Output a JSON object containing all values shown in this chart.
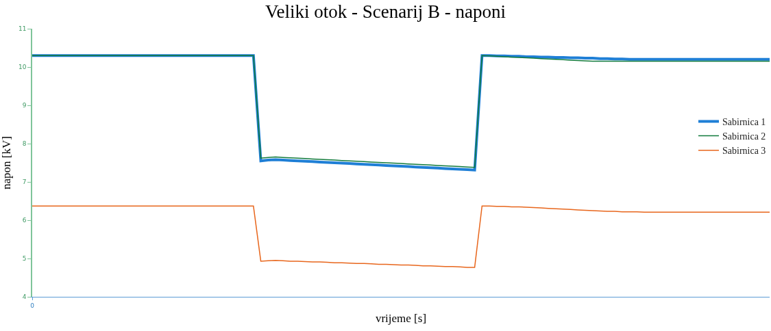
{
  "chart_data": {
    "type": "line",
    "title": "Veliki otok - Scenarij B - naponi",
    "xlabel": "vrijeme [s]",
    "ylabel": "napon [kV]",
    "categories": [
      "0",
      null,
      null,
      null,
      null,
      null,
      null,
      null,
      null,
      null,
      null,
      null,
      null,
      null,
      null,
      null,
      null,
      null,
      null,
      null,
      null,
      null,
      null,
      null,
      null,
      null,
      null,
      null,
      null,
      null,
      null,
      null,
      null,
      null,
      null,
      null,
      null,
      null,
      null,
      null,
      null,
      null,
      null,
      null,
      null,
      null,
      null,
      null,
      null,
      null,
      null,
      null,
      null,
      null,
      null,
      null,
      null,
      null,
      null,
      null,
      null,
      null,
      null,
      null,
      null,
      null,
      null,
      null,
      null,
      null,
      null,
      null,
      null,
      null,
      null,
      null,
      null,
      null,
      null,
      null,
      null,
      null,
      null,
      null,
      null,
      null,
      null,
      null,
      null,
      null,
      null,
      null,
      null,
      null,
      null,
      null,
      null,
      null,
      null,
      null,
      null
    ],
    "ylim": [
      4,
      11
    ],
    "yticks": [
      4,
      5,
      6,
      7,
      8,
      9,
      10,
      11
    ],
    "grid": false,
    "legend": "right",
    "marker": "none",
    "line_style": "solid",
    "series": [
      {
        "name": "Sabirnica 1",
        "color": "#1f7fd6",
        "values": [
          10.3,
          10.3,
          10.3,
          10.3,
          10.3,
          10.3,
          10.3,
          10.3,
          10.3,
          10.3,
          10.3,
          10.3,
          10.3,
          10.3,
          10.3,
          10.3,
          10.3,
          10.3,
          10.3,
          10.3,
          10.3,
          10.3,
          10.3,
          10.3,
          10.3,
          10.3,
          10.3,
          10.3,
          10.3,
          10.3,
          10.3,
          7.55,
          7.57,
          7.58,
          7.57,
          7.56,
          7.55,
          7.54,
          7.53,
          7.52,
          7.51,
          7.5,
          7.49,
          7.48,
          7.47,
          7.46,
          7.45,
          7.44,
          7.43,
          7.42,
          7.41,
          7.4,
          7.39,
          7.38,
          7.37,
          7.36,
          7.35,
          7.34,
          7.33,
          7.32,
          7.31,
          10.3,
          10.3,
          10.29,
          10.29,
          10.28,
          10.28,
          10.27,
          10.27,
          10.26,
          10.26,
          10.25,
          10.25,
          10.24,
          10.24,
          10.23,
          10.23,
          10.22,
          10.22,
          10.21,
          10.21,
          10.2,
          10.2,
          10.2,
          10.2,
          10.2,
          10.2,
          10.2,
          10.2,
          10.2,
          10.2,
          10.2,
          10.2,
          10.2,
          10.2,
          10.2,
          10.2,
          10.2,
          10.2,
          10.2,
          10.2
        ]
      },
      {
        "name": "Sabirnica 2",
        "color": "#107a3c",
        "values": [
          10.3,
          10.3,
          10.3,
          10.3,
          10.3,
          10.3,
          10.3,
          10.3,
          10.3,
          10.3,
          10.3,
          10.3,
          10.3,
          10.3,
          10.3,
          10.3,
          10.3,
          10.3,
          10.3,
          10.3,
          10.3,
          10.3,
          10.3,
          10.3,
          10.3,
          10.3,
          10.3,
          10.3,
          10.3,
          10.3,
          10.3,
          7.62,
          7.64,
          7.65,
          7.64,
          7.63,
          7.62,
          7.61,
          7.6,
          7.59,
          7.58,
          7.57,
          7.56,
          7.55,
          7.54,
          7.53,
          7.52,
          7.51,
          7.5,
          7.49,
          7.48,
          7.47,
          7.46,
          7.45,
          7.44,
          7.43,
          7.42,
          7.41,
          7.4,
          7.39,
          7.38,
          10.3,
          10.29,
          10.28,
          10.27,
          10.26,
          10.25,
          10.24,
          10.23,
          10.22,
          10.21,
          10.2,
          10.19,
          10.18,
          10.17,
          10.16,
          10.15,
          10.15,
          10.15,
          10.15,
          10.15,
          10.15,
          10.15,
          10.15,
          10.15,
          10.15,
          10.15,
          10.15,
          10.15,
          10.15,
          10.15,
          10.15,
          10.15,
          10.15,
          10.15,
          10.15,
          10.15,
          10.15,
          10.15,
          10.15,
          10.15
        ]
      },
      {
        "name": "Sabirnica 3",
        "color": "#e8661c",
        "values": [
          6.37,
          6.37,
          6.37,
          6.37,
          6.37,
          6.37,
          6.37,
          6.37,
          6.37,
          6.37,
          6.37,
          6.37,
          6.37,
          6.37,
          6.37,
          6.37,
          6.37,
          6.37,
          6.37,
          6.37,
          6.37,
          6.37,
          6.37,
          6.37,
          6.37,
          6.37,
          6.37,
          6.37,
          6.37,
          6.37,
          6.37,
          4.93,
          4.94,
          4.95,
          4.94,
          4.93,
          4.93,
          4.92,
          4.91,
          4.91,
          4.9,
          4.89,
          4.89,
          4.88,
          4.87,
          4.87,
          4.86,
          4.85,
          4.85,
          4.84,
          4.83,
          4.83,
          4.82,
          4.81,
          4.81,
          4.8,
          4.79,
          4.79,
          4.78,
          4.77,
          4.77,
          6.37,
          6.37,
          6.36,
          6.36,
          6.35,
          6.35,
          6.34,
          6.33,
          6.32,
          6.31,
          6.3,
          6.29,
          6.28,
          6.27,
          6.26,
          6.25,
          6.24,
          6.23,
          6.23,
          6.22,
          6.22,
          6.22,
          6.21,
          6.21,
          6.21,
          6.21,
          6.21,
          6.21,
          6.21,
          6.21,
          6.21,
          6.21,
          6.21,
          6.21,
          6.21,
          6.21,
          6.21,
          6.21,
          6.21,
          6.21
        ]
      }
    ]
  }
}
